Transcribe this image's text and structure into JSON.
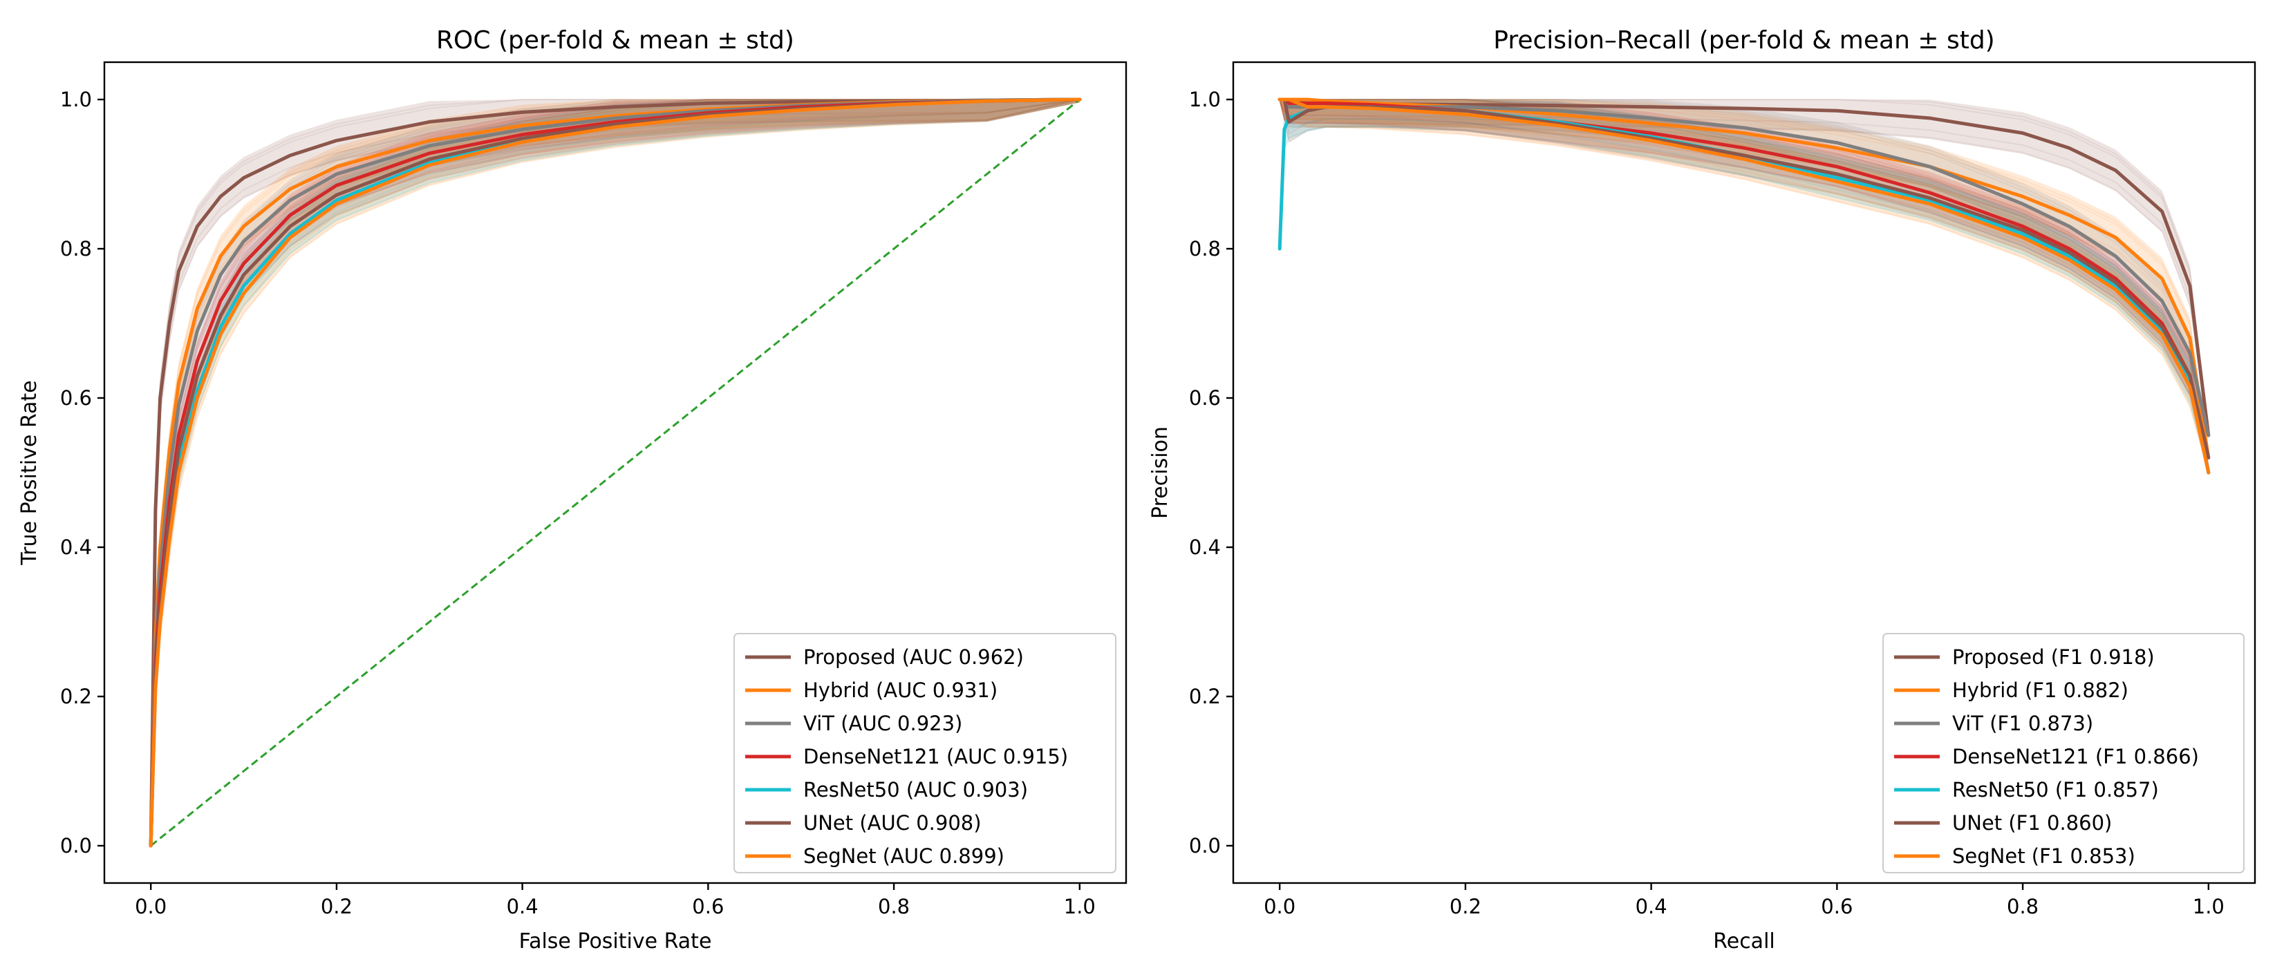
{
  "chart_data": [
    {
      "type": "line",
      "title": "ROC (per-fold & mean ± std)",
      "xlabel": "False Positive Rate",
      "ylabel": "True Positive Rate",
      "xlim": [
        -0.05,
        1.05
      ],
      "ylim": [
        -0.05,
        1.05
      ],
      "xticks": [
        "0.0",
        "0.2",
        "0.4",
        "0.6",
        "0.8",
        "1.0"
      ],
      "yticks": [
        "0.0",
        "0.2",
        "0.4",
        "0.6",
        "0.8",
        "1.0"
      ],
      "legend_position": "lower-right",
      "reference_line": {
        "name": "chance",
        "x": [
          0,
          1
        ],
        "y": [
          0,
          1
        ],
        "color": "#2ca02c",
        "style": "dashed"
      },
      "x": [
        0,
        0.005,
        0.01,
        0.02,
        0.03,
        0.05,
        0.075,
        0.1,
        0.15,
        0.2,
        0.3,
        0.4,
        0.5,
        0.6,
        0.7,
        0.8,
        0.9,
        1.0
      ],
      "series": [
        {
          "name": "Proposed (AUC 0.962)",
          "color": "#8c564b",
          "y": [
            0,
            0.45,
            0.6,
            0.7,
            0.77,
            0.83,
            0.87,
            0.895,
            0.925,
            0.945,
            0.97,
            0.983,
            0.99,
            0.995,
            0.997,
            0.998,
            0.999,
            1.0
          ]
        },
        {
          "name": "Hybrid (AUC 0.931)",
          "color": "#ff7f0e",
          "y": [
            0,
            0.28,
            0.4,
            0.53,
            0.62,
            0.72,
            0.79,
            0.83,
            0.88,
            0.91,
            0.945,
            0.965,
            0.978,
            0.987,
            0.993,
            0.997,
            0.999,
            1.0
          ]
        },
        {
          "name": "ViT (AUC 0.923)",
          "color": "#7f7f7f",
          "y": [
            0,
            0.26,
            0.37,
            0.5,
            0.59,
            0.69,
            0.765,
            0.81,
            0.865,
            0.9,
            0.938,
            0.96,
            0.975,
            0.985,
            0.992,
            0.996,
            0.999,
            1.0
          ]
        },
        {
          "name": "DenseNet121 (AUC 0.915)",
          "color": "#d62728",
          "y": [
            0,
            0.24,
            0.34,
            0.46,
            0.55,
            0.65,
            0.73,
            0.78,
            0.845,
            0.885,
            0.928,
            0.953,
            0.97,
            0.982,
            0.99,
            0.995,
            0.998,
            1.0
          ]
        },
        {
          "name": "ResNet50 (AUC 0.903)",
          "color": "#17becf",
          "y": [
            0,
            0.22,
            0.31,
            0.42,
            0.51,
            0.61,
            0.695,
            0.75,
            0.82,
            0.865,
            0.915,
            0.945,
            0.965,
            0.978,
            0.987,
            0.994,
            0.998,
            1.0
          ]
        },
        {
          "name": "UNet (AUC 0.908)",
          "color": "#8c564b",
          "y": [
            0,
            0.23,
            0.32,
            0.44,
            0.53,
            0.63,
            0.71,
            0.765,
            0.83,
            0.872,
            0.92,
            0.948,
            0.967,
            0.98,
            0.988,
            0.994,
            0.998,
            1.0
          ]
        },
        {
          "name": "SegNet (AUC 0.899)",
          "color": "#ff7f0e",
          "y": [
            0,
            0.21,
            0.3,
            0.41,
            0.5,
            0.6,
            0.685,
            0.74,
            0.815,
            0.86,
            0.912,
            0.943,
            0.963,
            0.977,
            0.986,
            0.993,
            0.998,
            1.0
          ]
        }
      ]
    },
    {
      "type": "line",
      "title": "Precision–Recall (per-fold & mean ± std)",
      "xlabel": "Recall",
      "ylabel": "Precision",
      "xlim": [
        -0.05,
        1.05
      ],
      "ylim": [
        -0.05,
        1.05
      ],
      "xticks": [
        "0.0",
        "0.2",
        "0.4",
        "0.6",
        "0.8",
        "1.0"
      ],
      "yticks": [
        "0.0",
        "0.2",
        "0.4",
        "0.6",
        "0.8",
        "1.0"
      ],
      "legend_position": "lower-right",
      "x": [
        0,
        0.005,
        0.01,
        0.03,
        0.05,
        0.1,
        0.2,
        0.3,
        0.4,
        0.5,
        0.6,
        0.7,
        0.8,
        0.85,
        0.9,
        0.95,
        0.98,
        1.0
      ],
      "series": [
        {
          "name": "Proposed (F1 0.918)",
          "color": "#8c564b",
          "y": [
            1.0,
            1.0,
            0.995,
            0.995,
            0.995,
            0.994,
            0.993,
            0.992,
            0.99,
            0.988,
            0.985,
            0.975,
            0.955,
            0.935,
            0.905,
            0.85,
            0.75,
            0.55
          ]
        },
        {
          "name": "Hybrid (F1 0.882)",
          "color": "#ff7f0e",
          "y": [
            1.0,
            1.0,
            1.0,
            1.0,
            0.998,
            0.995,
            0.99,
            0.98,
            0.968,
            0.955,
            0.935,
            0.91,
            0.87,
            0.845,
            0.815,
            0.76,
            0.68,
            0.52
          ]
        },
        {
          "name": "ViT (F1 0.873)",
          "color": "#7f7f7f",
          "y": [
            1.0,
            1.0,
            0.99,
            0.99,
            0.99,
            0.99,
            0.99,
            0.985,
            0.975,
            0.962,
            0.942,
            0.91,
            0.86,
            0.83,
            0.79,
            0.73,
            0.66,
            0.55
          ]
        },
        {
          "name": "DenseNet121 (F1 0.866)",
          "color": "#d62728",
          "y": [
            1.0,
            1.0,
            0.995,
            0.995,
            0.995,
            0.993,
            0.985,
            0.97,
            0.955,
            0.935,
            0.91,
            0.875,
            0.83,
            0.8,
            0.76,
            0.7,
            0.63,
            0.5
          ]
        },
        {
          "name": "ResNet50 (F1 0.857)",
          "color": "#17becf",
          "y": [
            0.8,
            0.96,
            0.975,
            0.985,
            0.99,
            0.99,
            0.985,
            0.97,
            0.95,
            0.925,
            0.895,
            0.865,
            0.82,
            0.79,
            0.75,
            0.69,
            0.62,
            0.5
          ]
        },
        {
          "name": "UNet (F1 0.860)",
          "color": "#8c564b",
          "y": [
            1.0,
            1.0,
            0.97,
            0.985,
            0.99,
            0.99,
            0.985,
            0.968,
            0.948,
            0.925,
            0.9,
            0.868,
            0.825,
            0.795,
            0.755,
            0.695,
            0.63,
            0.52
          ]
        },
        {
          "name": "SegNet (F1 0.853)",
          "color": "#ff7f0e",
          "y": [
            1.0,
            1.0,
            1.0,
            0.99,
            0.99,
            0.988,
            0.98,
            0.965,
            0.945,
            0.92,
            0.89,
            0.86,
            0.815,
            0.785,
            0.745,
            0.685,
            0.615,
            0.5
          ]
        }
      ]
    }
  ]
}
